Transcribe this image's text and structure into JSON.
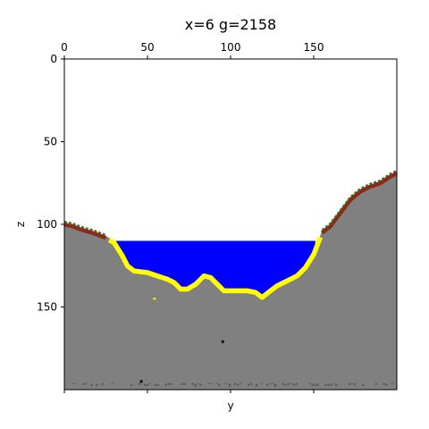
{
  "chart_data": {
    "type": "heatmap",
    "title": "x=6 g=2158",
    "xlabel": "y",
    "ylabel": "z",
    "xlim": [
      0,
      200
    ],
    "ylim": [
      200,
      0
    ],
    "x_ticks": [
      0,
      50,
      100,
      150
    ],
    "y_ticks": [
      0,
      50,
      100,
      150
    ],
    "x_axis_position": "top",
    "grid": false,
    "colors": {
      "background": "#ffffff",
      "stone": "#808080",
      "water": "#0000ff",
      "sand": "#ffff00",
      "dirt": "#8b2a1a",
      "grass": "#2e7d18",
      "bedrock": "#555555",
      "ore": "#000000"
    },
    "terrain_surface": [
      {
        "y": 0,
        "z": 99
      },
      {
        "y": 5,
        "z": 100
      },
      {
        "y": 10,
        "z": 102
      },
      {
        "y": 17,
        "z": 104
      },
      {
        "y": 25,
        "z": 107
      },
      {
        "y": 30,
        "z": 110
      },
      {
        "y": 35,
        "z": 118
      },
      {
        "y": 38,
        "z": 124
      },
      {
        "y": 42,
        "z": 127
      },
      {
        "y": 50,
        "z": 128
      },
      {
        "y": 56,
        "z": 130
      },
      {
        "y": 62,
        "z": 132
      },
      {
        "y": 66,
        "z": 134
      },
      {
        "y": 70,
        "z": 138
      },
      {
        "y": 74,
        "z": 138
      },
      {
        "y": 79,
        "z": 135
      },
      {
        "y": 84,
        "z": 130
      },
      {
        "y": 88,
        "z": 131
      },
      {
        "y": 92,
        "z": 135
      },
      {
        "y": 96,
        "z": 139
      },
      {
        "y": 103,
        "z": 139
      },
      {
        "y": 110,
        "z": 139
      },
      {
        "y": 115,
        "z": 140
      },
      {
        "y": 119,
        "z": 143
      },
      {
        "y": 124,
        "z": 139
      },
      {
        "y": 128,
        "z": 136
      },
      {
        "y": 134,
        "z": 133
      },
      {
        "y": 140,
        "z": 130
      },
      {
        "y": 145,
        "z": 125
      },
      {
        "y": 150,
        "z": 117
      },
      {
        "y": 155,
        "z": 104
      },
      {
        "y": 160,
        "z": 100
      },
      {
        "y": 166,
        "z": 92
      },
      {
        "y": 172,
        "z": 84
      },
      {
        "y": 178,
        "z": 79
      },
      {
        "y": 184,
        "z": 76
      },
      {
        "y": 190,
        "z": 74
      },
      {
        "y": 196,
        "z": 70
      },
      {
        "y": 200,
        "z": 68
      }
    ],
    "water_level": 110,
    "water_extent": [
      31,
      151
    ],
    "dirt_grass_extents": [
      [
        0,
        25
      ],
      [
        155,
        200
      ]
    ],
    "bedrock_level": 196,
    "isolated_blocks": [
      {
        "y": 54,
        "z": 145,
        "material": "sand"
      },
      {
        "y": 95,
        "z": 171,
        "material": "ore"
      },
      {
        "y": 46,
        "z": 195,
        "material": "ore"
      }
    ]
  }
}
